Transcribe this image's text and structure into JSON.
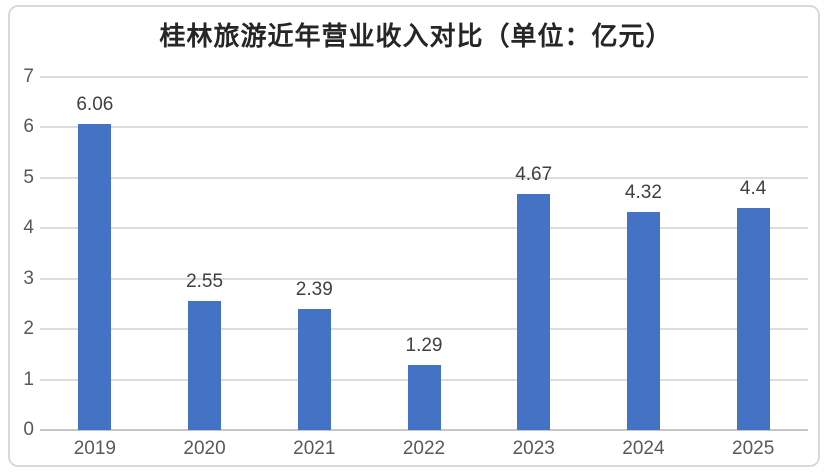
{
  "chart": {
    "colors": {
      "background": "#FFFFFF",
      "frame_border": "#D9D9D9",
      "title": "#262626",
      "bar": "#4472C4",
      "value_label": "#404040",
      "axis_label": "#595959",
      "gridline": "#DCDCDC",
      "axis_line": "#C6C6C6"
    }
  },
  "chart_data": {
    "type": "bar",
    "title": "桂林旅游近年营业收入对比（单位：亿元）",
    "categories": [
      "2019",
      "2020",
      "2021",
      "2022",
      "2023",
      "2024",
      "2025"
    ],
    "values": [
      6.06,
      2.55,
      2.39,
      1.29,
      4.67,
      4.32,
      4.4
    ],
    "value_labels": [
      "6.06",
      "2.55",
      "2.39",
      "1.29",
      "4.67",
      "4.32",
      "4.4"
    ],
    "xlabel": "",
    "ylabel": "",
    "ylim": [
      0,
      7
    ],
    "yticks": [
      0,
      1,
      2,
      3,
      4,
      5,
      6,
      7
    ],
    "ytick_labels": [
      "0",
      "1",
      "2",
      "3",
      "4",
      "5",
      "6",
      "7"
    ],
    "grid": true,
    "legend": false,
    "legend_position": "none"
  }
}
